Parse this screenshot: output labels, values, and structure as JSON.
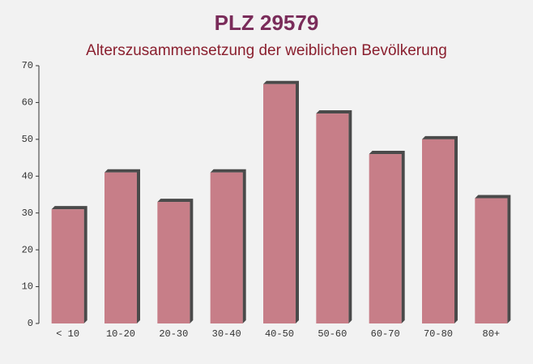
{
  "chart_data": {
    "type": "bar",
    "title": "PLZ 29579",
    "subtitle": "Alterszusammensetzung der weiblichen Bevölkerung",
    "categories": [
      "< 10",
      "10-20",
      "20-30",
      "30-40",
      "40-50",
      "50-60",
      "60-70",
      "70-80",
      "80+"
    ],
    "values": [
      31,
      41,
      33,
      41,
      65,
      57,
      46,
      50,
      34
    ],
    "color": "#c06a76",
    "ylim": [
      0,
      70
    ],
    "yticks": [
      0,
      10,
      20,
      30,
      40,
      50,
      60,
      70
    ],
    "grid": false
  }
}
